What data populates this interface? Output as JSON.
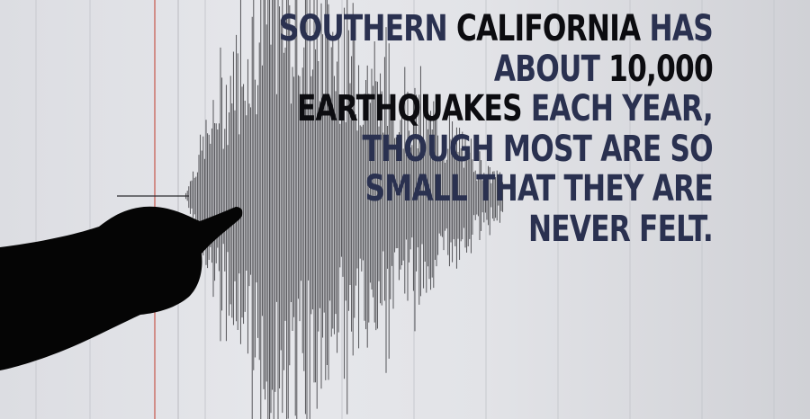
{
  "caption": {
    "lines": [
      {
        "parts": [
          {
            "text": "SOUTHERN",
            "emph": false
          },
          {
            "text": " CALIFORNIA",
            "emph": true
          },
          {
            "text": " HAS",
            "emph": false
          }
        ]
      },
      {
        "parts": [
          {
            "text": "ABOUT",
            "emph": false
          },
          {
            "text": " 10,000",
            "emph": true
          }
        ]
      },
      {
        "parts": [
          {
            "text": "EARTHQUAKES",
            "emph": true
          },
          {
            "text": " EACH YEAR,",
            "emph": false
          }
        ]
      },
      {
        "parts": [
          {
            "text": "THOUGH MOST ARE SO",
            "emph": false
          }
        ]
      },
      {
        "parts": [
          {
            "text": "SMALL THAT THEY ARE",
            "emph": false
          }
        ]
      },
      {
        "parts": [
          {
            "text": "NEVER FELT.",
            "emph": false
          }
        ]
      }
    ]
  },
  "colors": {
    "text_primary": "#2a3150",
    "text_emphasis": "#0c0c10",
    "background": "#e2e3e7",
    "trace": "#2b2b2f",
    "red_line": "#c0392b"
  },
  "icons": [
    "seismograph-trace",
    "pointing-hand-silhouette"
  ]
}
